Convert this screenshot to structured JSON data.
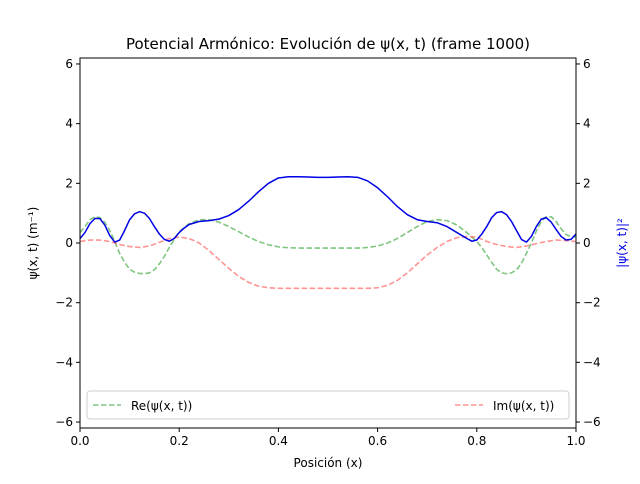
{
  "chart_data": {
    "type": "line",
    "title": "Potencial Armónico: Evolución de ψ(x, t) (frame 1000)",
    "xlabel": "Posición (x)",
    "ylabel_left": "ψ(x, t) (m⁻¹)",
    "ylabel_right": "|ψ(x, t)|²",
    "xlim": [
      0.0,
      1.0
    ],
    "ylim": [
      -6.2,
      6.2
    ],
    "xticks": [
      "0.0",
      "0.2",
      "0.4",
      "0.6",
      "0.8",
      "1.0"
    ],
    "yticks": [
      "−6",
      "−4",
      "−2",
      "0",
      "2",
      "4",
      "6"
    ],
    "legend_placement": "bottom",
    "series": [
      {
        "name": "Re(ψ(x, t))",
        "color": "#2ca02c",
        "style": "dashed",
        "x": [
          0.0,
          0.01,
          0.02,
          0.03,
          0.04,
          0.05,
          0.06,
          0.07,
          0.08,
          0.09,
          0.1,
          0.11,
          0.12,
          0.13,
          0.14,
          0.15,
          0.16,
          0.17,
          0.18,
          0.19,
          0.2,
          0.22,
          0.24,
          0.26,
          0.28,
          0.3,
          0.32,
          0.34,
          0.36,
          0.38,
          0.4,
          0.42,
          0.44,
          0.46,
          0.48,
          0.5,
          0.52,
          0.54,
          0.56,
          0.58,
          0.6,
          0.62,
          0.64,
          0.66,
          0.68,
          0.7,
          0.72,
          0.74,
          0.76,
          0.78,
          0.8,
          0.81,
          0.82,
          0.83,
          0.84,
          0.85,
          0.86,
          0.87,
          0.88,
          0.89,
          0.9,
          0.91,
          0.92,
          0.93,
          0.94,
          0.95,
          0.96,
          0.97,
          0.98,
          0.99,
          1.0
        ],
        "y": [
          0.35,
          0.55,
          0.78,
          0.88,
          0.85,
          0.7,
          0.42,
          0.05,
          -0.35,
          -0.65,
          -0.88,
          -0.98,
          -1.02,
          -1.03,
          -1.0,
          -0.9,
          -0.7,
          -0.45,
          -0.15,
          0.12,
          0.38,
          0.65,
          0.78,
          0.78,
          0.7,
          0.55,
          0.38,
          0.2,
          0.05,
          -0.06,
          -0.13,
          -0.16,
          -0.17,
          -0.17,
          -0.17,
          -0.17,
          -0.17,
          -0.17,
          -0.17,
          -0.15,
          -0.1,
          0.0,
          0.15,
          0.35,
          0.55,
          0.72,
          0.78,
          0.75,
          0.6,
          0.35,
          0.05,
          -0.15,
          -0.4,
          -0.65,
          -0.88,
          -1.0,
          -1.03,
          -1.0,
          -0.9,
          -0.68,
          -0.35,
          0.0,
          0.4,
          0.72,
          0.88,
          0.88,
          0.72,
          0.48,
          0.28,
          0.22,
          0.2
        ]
      },
      {
        "name": "Im(ψ(x, t))",
        "color": "#ff4d4d",
        "style": "dashed",
        "x": [
          0.0,
          0.02,
          0.04,
          0.06,
          0.08,
          0.1,
          0.12,
          0.14,
          0.16,
          0.18,
          0.2,
          0.22,
          0.24,
          0.26,
          0.28,
          0.3,
          0.32,
          0.34,
          0.36,
          0.38,
          0.4,
          0.42,
          0.44,
          0.46,
          0.48,
          0.5,
          0.52,
          0.54,
          0.56,
          0.58,
          0.6,
          0.62,
          0.64,
          0.66,
          0.68,
          0.7,
          0.72,
          0.74,
          0.76,
          0.78,
          0.8,
          0.82,
          0.84,
          0.86,
          0.88,
          0.9,
          0.92,
          0.94,
          0.96,
          0.98,
          1.0
        ],
        "y": [
          0.05,
          0.1,
          0.1,
          0.05,
          -0.05,
          -0.12,
          -0.15,
          -0.1,
          0.02,
          0.15,
          0.2,
          0.15,
          0.0,
          -0.25,
          -0.55,
          -0.85,
          -1.12,
          -1.32,
          -1.45,
          -1.5,
          -1.52,
          -1.52,
          -1.52,
          -1.52,
          -1.52,
          -1.52,
          -1.52,
          -1.52,
          -1.52,
          -1.52,
          -1.5,
          -1.42,
          -1.25,
          -1.0,
          -0.7,
          -0.4,
          -0.15,
          0.05,
          0.18,
          0.22,
          0.2,
          0.05,
          -0.05,
          -0.12,
          -0.15,
          -0.1,
          -0.02,
          0.05,
          0.1,
          0.08,
          0.05
        ]
      },
      {
        "name": "|ψ(x, t)|²",
        "color": "#0000e6",
        "style": "solid",
        "x": [
          0.0,
          0.01,
          0.02,
          0.03,
          0.04,
          0.05,
          0.06,
          0.07,
          0.08,
          0.09,
          0.1,
          0.11,
          0.12,
          0.13,
          0.14,
          0.15,
          0.16,
          0.17,
          0.18,
          0.19,
          0.2,
          0.21,
          0.22,
          0.24,
          0.26,
          0.28,
          0.3,
          0.32,
          0.34,
          0.36,
          0.38,
          0.4,
          0.42,
          0.44,
          0.46,
          0.48,
          0.5,
          0.52,
          0.54,
          0.56,
          0.58,
          0.6,
          0.62,
          0.64,
          0.66,
          0.68,
          0.7,
          0.72,
          0.74,
          0.76,
          0.78,
          0.79,
          0.8,
          0.81,
          0.82,
          0.83,
          0.84,
          0.85,
          0.86,
          0.87,
          0.88,
          0.89,
          0.9,
          0.91,
          0.92,
          0.93,
          0.94,
          0.95,
          0.96,
          0.97,
          0.98,
          0.99,
          1.0
        ],
        "y": [
          0.15,
          0.35,
          0.65,
          0.82,
          0.82,
          0.6,
          0.25,
          0.03,
          0.1,
          0.42,
          0.78,
          0.98,
          1.05,
          1.0,
          0.82,
          0.55,
          0.3,
          0.12,
          0.06,
          0.15,
          0.35,
          0.5,
          0.62,
          0.72,
          0.75,
          0.8,
          0.92,
          1.12,
          1.4,
          1.72,
          2.0,
          2.18,
          2.22,
          2.22,
          2.21,
          2.2,
          2.2,
          2.21,
          2.22,
          2.2,
          2.08,
          1.85,
          1.55,
          1.22,
          0.95,
          0.78,
          0.72,
          0.68,
          0.55,
          0.35,
          0.15,
          0.06,
          0.1,
          0.3,
          0.55,
          0.85,
          1.02,
          1.05,
          0.95,
          0.72,
          0.42,
          0.12,
          0.03,
          0.22,
          0.55,
          0.8,
          0.85,
          0.7,
          0.45,
          0.22,
          0.1,
          0.12,
          0.3
        ]
      }
    ]
  }
}
